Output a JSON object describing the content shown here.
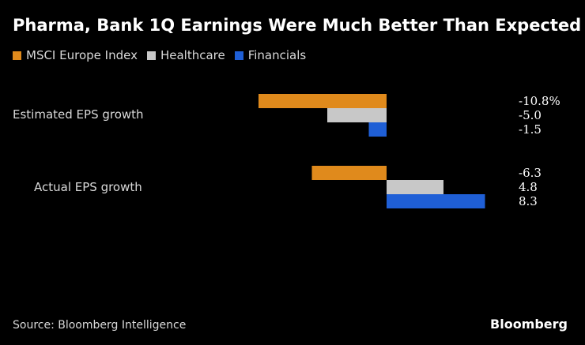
{
  "chart_data": {
    "type": "bar",
    "orientation": "horizontal",
    "title": "Pharma, Bank 1Q Earnings Were Much Better Than Expected",
    "categories": [
      "Estimated EPS growth",
      "Actual EPS growth"
    ],
    "series": [
      {
        "name": "MSCI Europe Index",
        "color": "#e08a1c",
        "values": [
          -10.8,
          -6.3
        ],
        "labels": [
          "-10.8%",
          "-6.3"
        ]
      },
      {
        "name": "Healthcare",
        "color": "#c8c8c8",
        "values": [
          -5.0,
          4.8
        ],
        "labels": [
          "-5.0",
          "4.8"
        ]
      },
      {
        "name": "Financials",
        "color": "#1f5fd6",
        "values": [
          -1.5,
          8.3
        ],
        "labels": [
          "-1.5",
          "8.3"
        ]
      }
    ],
    "xlim": [
      -11,
      9
    ],
    "grid": false,
    "legend": "top-left"
  },
  "footer": {
    "source": "Source: Bloomberg Intelligence",
    "brand": "Bloomberg"
  }
}
